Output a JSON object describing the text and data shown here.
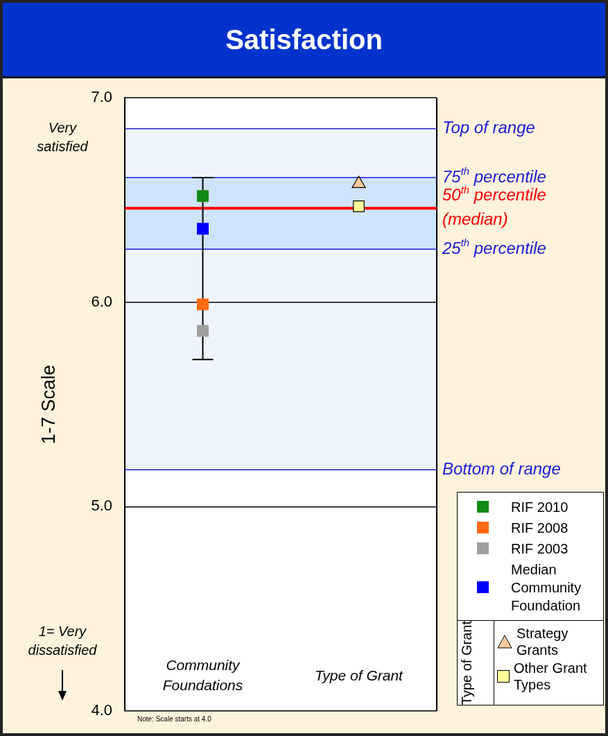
{
  "chart_data": {
    "type": "scatter",
    "title": "Satisfaction",
    "ylabel": "1-7 Scale",
    "categories": [
      "Community Foundations",
      "Type of Grant"
    ],
    "ylim": [
      4,
      7
    ],
    "yticks": [
      {
        "value": 4,
        "label": "4.0"
      },
      {
        "value": 5,
        "label": "5.0"
      },
      {
        "value": 6,
        "label": "6.0"
      },
      {
        "value": 7,
        "label": "7.0"
      }
    ],
    "grid": "y",
    "legend": "bottom right",
    "legend_title": "Type of Grant",
    "series": [
      {
        "name": "RIF 2010",
        "color": "#138a13",
        "marker": "square",
        "values": [
          6.52,
          null
        ]
      },
      {
        "name": "RIF 2008",
        "color": "#ff6a13",
        "marker": "square",
        "values": [
          5.99,
          null
        ]
      },
      {
        "name": "RIF 2003",
        "color": "#a0a0a0",
        "marker": "square",
        "values": [
          5.86,
          null
        ]
      },
      {
        "name": "Median Community Foundation",
        "color": "#0000ff",
        "marker": "square",
        "values": [
          6.36,
          null
        ],
        "errors": [
          [
            5.72,
            6.61
          ],
          null
        ]
      },
      {
        "name": "Strategy Grants",
        "color": "#fbc99c",
        "marker": "triangle",
        "values": [
          null,
          6.58
        ]
      },
      {
        "name": "Other Grant Types",
        "color": "#ffff99",
        "marker": "square",
        "values": [
          null,
          6.47
        ]
      }
    ],
    "bands": [
      {
        "axis": "y",
        "from": 5.18,
        "to": 6.85,
        "color": "#eef4fd"
      },
      {
        "axis": "y",
        "from": 6.26,
        "to": 6.61,
        "color": "#cfe3fb"
      }
    ],
    "ref_lines": [
      {
        "axis": "y",
        "value": 6.85,
        "label": "Top of range",
        "color": "#1a1ad6"
      },
      {
        "axis": "y",
        "value": 6.61,
        "label": "75$^{th}$ percentile",
        "color": "#1a1ad6"
      },
      {
        "axis": "y",
        "value": 6.46,
        "label": "50$^{th}$ percentile (median)",
        "color": "#ff0000"
      },
      {
        "axis": "y",
        "value": 6.26,
        "label": "25$^{th}$ percentile",
        "color": "#1a1ad6"
      },
      {
        "axis": "y",
        "value": 5.18,
        "label": "Bottom of range",
        "color": "#1a1ad6"
      }
    ],
    "annotations": [
      "Very satisfied",
      "1= Very dissatisfied",
      "Note: Scale starts at 4.0"
    ]
  }
}
